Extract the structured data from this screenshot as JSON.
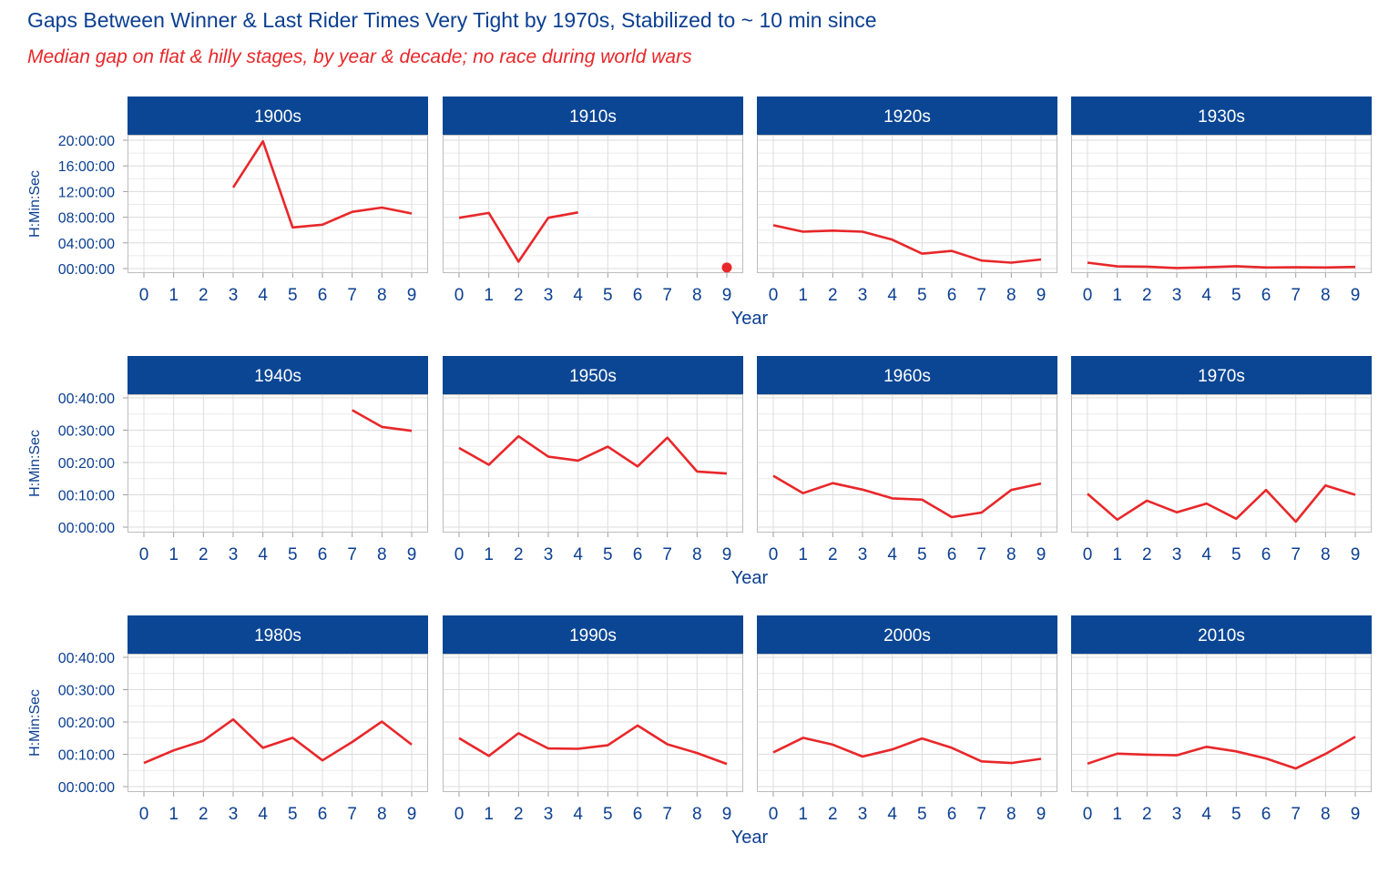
{
  "title": "Gaps Between Winner & Last Rider Times Very Tight by 1970s, Stabilized to ~ 10 min since",
  "subtitle": "Median gap on flat & hilly stages, by year & decade; no race during world wars",
  "colors": {
    "title": "#0B3F91",
    "subtitle": "#E8272A",
    "strip": "#0B4694",
    "line": "#E8272A",
    "axis_text": "#0B3F91",
    "grid": "#DCDCDC"
  },
  "chart_data": {
    "type": "line",
    "xlabel": "Year",
    "ylabel": "H:Min:Sec",
    "x_ticks": [
      "0",
      "1",
      "2",
      "3",
      "4",
      "5",
      "6",
      "7",
      "8",
      "9"
    ],
    "grid": true,
    "rows": [
      {
        "yticks": [
          "00:00:00",
          "04:00:00",
          "08:00:00",
          "12:00:00",
          "16:00:00",
          "20:00:00"
        ],
        "ylim_minutes": [
          0,
          1200
        ]
      },
      {
        "yticks": [
          "00:00:00",
          "00:10:00",
          "00:20:00",
          "00:30:00",
          "00:40:00"
        ],
        "ylim_minutes": [
          0,
          40
        ]
      },
      {
        "yticks": [
          "00:00:00",
          "00:10:00",
          "00:20:00",
          "00:30:00",
          "00:40:00"
        ],
        "ylim_minutes": [
          0,
          40
        ]
      }
    ],
    "panels": [
      {
        "decade": "1900s",
        "row": 0,
        "x": [
          3,
          4,
          5,
          6,
          7,
          8,
          9
        ],
        "y_minutes": [
          758,
          1190,
          385,
          410,
          530,
          570,
          515
        ]
      },
      {
        "decade": "1910s",
        "row": 0,
        "x": [
          0,
          1,
          2,
          3,
          4
        ],
        "y_minutes": [
          475,
          520,
          65,
          475,
          525
        ],
        "points": [
          {
            "x": 9,
            "y_minutes": 10
          }
        ]
      },
      {
        "decade": "1920s",
        "row": 0,
        "x": [
          0,
          1,
          2,
          3,
          4,
          5,
          6,
          7,
          8,
          9
        ],
        "y_minutes": [
          405,
          345,
          355,
          345,
          270,
          140,
          165,
          75,
          55,
          85
        ]
      },
      {
        "decade": "1930s",
        "row": 0,
        "x": [
          0,
          1,
          2,
          3,
          4,
          5,
          6,
          7,
          8,
          9
        ],
        "y_minutes": [
          55,
          20,
          18,
          5,
          12,
          22,
          10,
          12,
          10,
          15
        ]
      },
      {
        "decade": "1940s",
        "row": 1,
        "x": [
          7,
          8,
          9
        ],
        "y_minutes": [
          36.2,
          31.0,
          29.8
        ]
      },
      {
        "decade": "1950s",
        "row": 1,
        "x": [
          0,
          1,
          2,
          3,
          4,
          5,
          6,
          7,
          8,
          9
        ],
        "y_minutes": [
          24.5,
          19.3,
          28.1,
          21.8,
          20.6,
          24.9,
          18.8,
          27.7,
          17.2,
          16.6
        ]
      },
      {
        "decade": "1960s",
        "row": 1,
        "x": [
          0,
          1,
          2,
          3,
          4,
          5,
          6,
          7,
          8,
          9
        ],
        "y_minutes": [
          15.9,
          10.5,
          13.6,
          11.6,
          8.9,
          8.5,
          3.1,
          4.5,
          11.5,
          13.5
        ]
      },
      {
        "decade": "1970s",
        "row": 1,
        "x": [
          0,
          1,
          2,
          3,
          4,
          5,
          6,
          7,
          8,
          9
        ],
        "y_minutes": [
          10.3,
          2.3,
          8.2,
          4.6,
          7.3,
          2.6,
          11.5,
          1.7,
          12.9,
          10.0
        ]
      },
      {
        "decade": "1980s",
        "row": 2,
        "x": [
          0,
          1,
          2,
          3,
          4,
          5,
          6,
          7,
          8,
          9
        ],
        "y_minutes": [
          7.3,
          11.2,
          14.2,
          20.8,
          12.0,
          15.1,
          8.1,
          13.8,
          20.1,
          13.0
        ]
      },
      {
        "decade": "1990s",
        "row": 2,
        "x": [
          0,
          1,
          2,
          3,
          4,
          5,
          6,
          7,
          8,
          9
        ],
        "y_minutes": [
          15.0,
          9.5,
          16.5,
          11.8,
          11.7,
          12.8,
          18.9,
          13.1,
          10.4,
          7.0
        ]
      },
      {
        "decade": "2000s",
        "row": 2,
        "x": [
          0,
          1,
          2,
          3,
          4,
          5,
          6,
          7,
          8,
          9
        ],
        "y_minutes": [
          10.6,
          15.1,
          13.0,
          9.3,
          11.5,
          14.9,
          12.0,
          7.8,
          7.3,
          8.6
        ]
      },
      {
        "decade": "2010s",
        "row": 2,
        "x": [
          0,
          1,
          2,
          3,
          4,
          5,
          6,
          7,
          8,
          9
        ],
        "y_minutes": [
          7.1,
          10.2,
          9.9,
          9.7,
          12.3,
          10.9,
          8.7,
          5.6,
          10.1,
          15.4
        ]
      }
    ]
  }
}
